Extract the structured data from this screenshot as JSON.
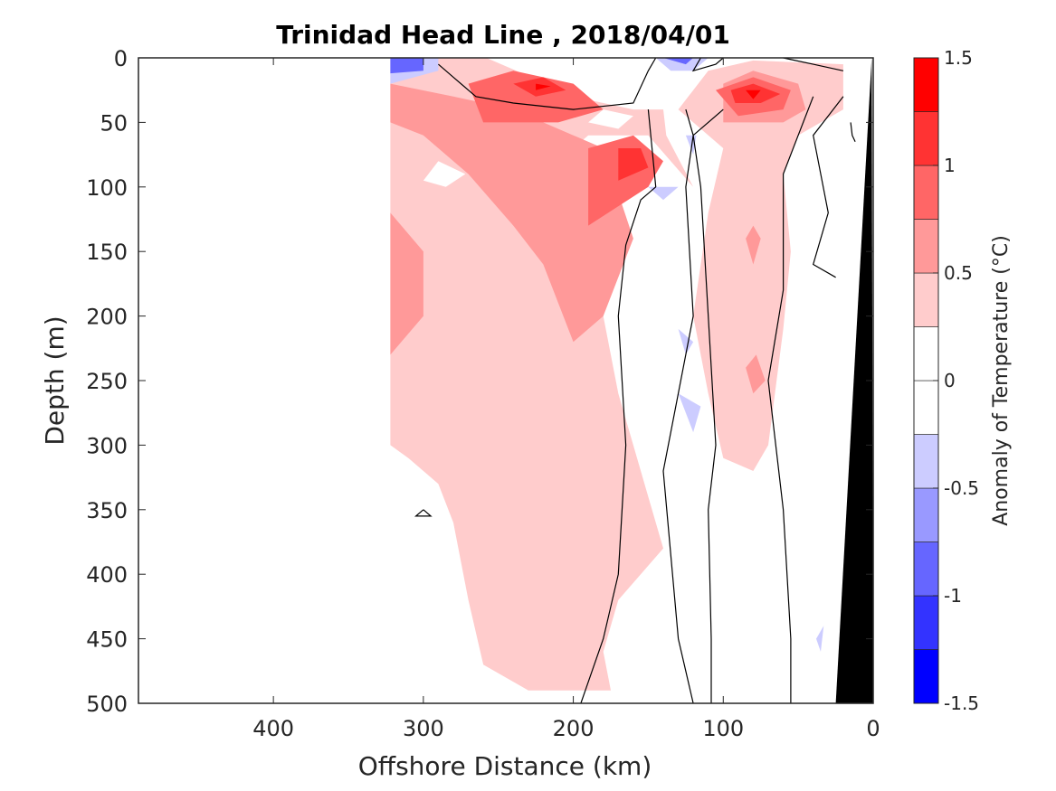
{
  "chart_data": {
    "type": "contour",
    "title": "Trinidad Head Line , 2018/04/01",
    "xlabel": "Offshore Distance (km)",
    "ylabel": "Depth (m)",
    "xlim": [
      490,
      0
    ],
    "ylim": [
      0,
      500
    ],
    "x_reversed": true,
    "y_reversed": true,
    "x_ticks": [
      400,
      300,
      200,
      100,
      0
    ],
    "y_ticks": [
      0,
      50,
      100,
      150,
      200,
      250,
      300,
      350,
      400,
      450,
      500
    ],
    "colorbar": {
      "label": "Anomaly of Temperature (°C)",
      "range": [
        -1.5,
        1.5
      ],
      "ticks": [
        -1.5,
        -1,
        -0.5,
        0,
        0.5,
        1,
        1.5
      ],
      "levels": [
        {
          "from": -1.5,
          "to": -1.25,
          "color": "#0000ff"
        },
        {
          "from": -1.25,
          "to": -1.0,
          "color": "#3333ff"
        },
        {
          "from": -1.0,
          "to": -0.75,
          "color": "#6666ff"
        },
        {
          "from": -0.75,
          "to": -0.5,
          "color": "#9999ff"
        },
        {
          "from": -0.5,
          "to": -0.25,
          "color": "#ccccff"
        },
        {
          "from": -0.25,
          "to": 0.0,
          "color": "#ffffff"
        },
        {
          "from": 0.0,
          "to": 0.25,
          "color": "#ffffff"
        },
        {
          "from": 0.25,
          "to": 0.5,
          "color": "#ffcccc"
        },
        {
          "from": 0.5,
          "to": 0.75,
          "color": "#ff9999"
        },
        {
          "from": 0.75,
          "to": 1.0,
          "color": "#ff6666"
        },
        {
          "from": 1.0,
          "to": 1.25,
          "color": "#ff3333"
        },
        {
          "from": 1.25,
          "to": 1.5,
          "color": "#ff0000"
        }
      ]
    },
    "data_extent_km": [
      322,
      0
    ],
    "bathymetry_color": "#000000",
    "contour_line_color": "#000000",
    "regions": [
      {
        "level": 0.375,
        "points": [
          [
            322,
            0
          ],
          [
            258,
            0
          ],
          [
            230,
            14
          ],
          [
            200,
            30
          ],
          [
            160,
            40
          ],
          [
            140,
            40
          ],
          [
            138,
            60
          ],
          [
            120,
            100
          ],
          [
            150,
            60
          ],
          [
            190,
            60
          ],
          [
            200,
            70
          ],
          [
            200,
            90
          ],
          [
            210,
            100
          ],
          [
            200,
            150
          ],
          [
            180,
            200
          ],
          [
            170,
            260
          ],
          [
            150,
            340
          ],
          [
            140,
            380
          ],
          [
            170,
            420
          ],
          [
            180,
            460
          ],
          [
            175,
            490
          ],
          [
            230,
            490
          ],
          [
            260,
            470
          ],
          [
            270,
            420
          ],
          [
            280,
            360
          ],
          [
            290,
            330
          ],
          [
            310,
            310
          ],
          [
            322,
            300
          ]
        ]
      },
      {
        "level": 0.375,
        "points": [
          [
            130,
            40
          ],
          [
            110,
            10
          ],
          [
            80,
            2
          ],
          [
            20,
            5
          ],
          [
            20,
            40
          ],
          [
            50,
            60
          ],
          [
            60,
            90
          ],
          [
            55,
            150
          ],
          [
            60,
            210
          ],
          [
            70,
            300
          ],
          [
            80,
            320
          ],
          [
            100,
            310
          ],
          [
            110,
            260
          ],
          [
            120,
            200
          ],
          [
            110,
            120
          ],
          [
            100,
            70
          ]
        ]
      },
      {
        "level": 0.625,
        "points": [
          [
            322,
            20
          ],
          [
            280,
            30
          ],
          [
            240,
            40
          ],
          [
            200,
            60
          ],
          [
            180,
            70
          ],
          [
            160,
            140
          ],
          [
            180,
            200
          ],
          [
            200,
            220
          ],
          [
            220,
            160
          ],
          [
            240,
            130
          ],
          [
            270,
            90
          ],
          [
            300,
            60
          ],
          [
            322,
            50
          ]
        ]
      },
      {
        "level": 0.625,
        "points": [
          [
            322,
            120
          ],
          [
            300,
            150
          ],
          [
            300,
            200
          ],
          [
            322,
            230
          ]
        ]
      },
      {
        "level": 0.625,
        "points": [
          [
            100,
            20
          ],
          [
            80,
            10
          ],
          [
            50,
            20
          ],
          [
            45,
            40
          ],
          [
            60,
            50
          ],
          [
            100,
            50
          ]
        ]
      },
      {
        "level": 0.625,
        "points": [
          [
            85,
            140
          ],
          [
            80,
            160
          ],
          [
            75,
            140
          ],
          [
            80,
            130
          ]
        ]
      },
      {
        "level": 0.625,
        "points": [
          [
            85,
            240
          ],
          [
            80,
            260
          ],
          [
            72,
            250
          ],
          [
            78,
            230
          ]
        ]
      },
      {
        "level": 0.875,
        "points": [
          [
            270,
            20
          ],
          [
            240,
            10
          ],
          [
            200,
            20
          ],
          [
            180,
            40
          ],
          [
            210,
            50
          ],
          [
            260,
            50
          ]
        ]
      },
      {
        "level": 0.875,
        "points": [
          [
            190,
            70
          ],
          [
            160,
            60
          ],
          [
            140,
            80
          ],
          [
            150,
            100
          ],
          [
            190,
            130
          ]
        ]
      },
      {
        "level": 0.875,
        "points": [
          [
            105,
            25
          ],
          [
            80,
            15
          ],
          [
            55,
            25
          ],
          [
            60,
            40
          ],
          [
            90,
            45
          ]
        ]
      },
      {
        "level": 1.125,
        "points": [
          [
            240,
            20
          ],
          [
            220,
            15
          ],
          [
            205,
            25
          ],
          [
            225,
            30
          ]
        ]
      },
      {
        "level": 1.125,
        "points": [
          [
            170,
            70
          ],
          [
            155,
            70
          ],
          [
            150,
            85
          ],
          [
            170,
            95
          ]
        ]
      },
      {
        "level": 1.125,
        "points": [
          [
            95,
            25
          ],
          [
            80,
            20
          ],
          [
            62,
            28
          ],
          [
            75,
            35
          ],
          [
            92,
            35
          ]
        ]
      },
      {
        "level": 1.375,
        "points": [
          [
            225,
            20
          ],
          [
            215,
            22
          ],
          [
            225,
            25
          ]
        ]
      },
      {
        "level": 1.375,
        "points": [
          [
            85,
            25
          ],
          [
            75,
            25
          ],
          [
            80,
            32
          ]
        ]
      },
      {
        "level": 0.125,
        "points": [
          [
            290,
            80
          ],
          [
            272,
            90
          ],
          [
            285,
            100
          ],
          [
            300,
            95
          ]
        ]
      },
      {
        "level": 0.125,
        "points": [
          [
            180,
            40
          ],
          [
            160,
            45
          ],
          [
            170,
            55
          ],
          [
            190,
            50
          ]
        ]
      },
      {
        "level": -0.375,
        "points": [
          [
            322,
            0
          ],
          [
            290,
            0
          ],
          [
            290,
            10
          ],
          [
            322,
            20
          ]
        ]
      },
      {
        "level": -0.375,
        "points": [
          [
            145,
            0
          ],
          [
            110,
            0
          ],
          [
            120,
            10
          ],
          [
            135,
            10
          ]
        ]
      },
      {
        "level": -0.375,
        "points": [
          [
            125,
            60
          ],
          [
            120,
            75
          ],
          [
            118,
            60
          ]
        ]
      },
      {
        "level": -0.375,
        "points": [
          [
            150,
            100
          ],
          [
            140,
            110
          ],
          [
            130,
            100
          ]
        ]
      },
      {
        "level": -0.375,
        "points": [
          [
            130,
            210
          ],
          [
            125,
            230
          ],
          [
            120,
            220
          ]
        ]
      },
      {
        "level": -0.375,
        "points": [
          [
            130,
            260
          ],
          [
            120,
            290
          ],
          [
            115,
            270
          ]
        ]
      },
      {
        "level": -0.375,
        "points": [
          [
            38,
            450
          ],
          [
            35,
            460
          ],
          [
            33,
            440
          ]
        ]
      },
      {
        "level": -0.875,
        "points": [
          [
            322,
            0
          ],
          [
            300,
            0
          ],
          [
            300,
            10
          ],
          [
            322,
            12
          ]
        ]
      },
      {
        "level": -0.875,
        "points": [
          [
            140,
            0
          ],
          [
            120,
            0
          ],
          [
            125,
            5
          ]
        ]
      }
    ],
    "contour_lines": [
      {
        "level": 0,
        "points": [
          [
            290,
            5
          ],
          [
            280,
            15
          ],
          [
            265,
            30
          ],
          [
            240,
            35
          ],
          [
            200,
            40
          ],
          [
            160,
            35
          ],
          [
            150,
            10
          ],
          [
            145,
            0
          ]
        ]
      },
      {
        "level": 0,
        "points": [
          [
            115,
            0
          ],
          [
            120,
            10
          ],
          [
            105,
            5
          ],
          [
            100,
            0
          ]
        ]
      },
      {
        "level": 0,
        "points": [
          [
            60,
            0
          ],
          [
            40,
            5
          ],
          [
            20,
            10
          ]
        ]
      },
      {
        "level": 0,
        "points": [
          [
            150,
            40
          ],
          [
            145,
            100
          ],
          [
            155,
            110
          ],
          [
            165,
            145
          ],
          [
            170,
            200
          ],
          [
            165,
            300
          ],
          [
            170,
            400
          ],
          [
            180,
            450
          ],
          [
            195,
            500
          ]
        ]
      },
      {
        "level": 0,
        "points": [
          [
            125,
            40
          ],
          [
            120,
            60
          ],
          [
            125,
            100
          ],
          [
            120,
            200
          ],
          [
            135,
            290
          ],
          [
            140,
            320
          ],
          [
            130,
            450
          ],
          [
            120,
            500
          ]
        ]
      },
      {
        "level": 0,
        "points": [
          [
            100,
            40
          ],
          [
            120,
            60
          ],
          [
            115,
            100
          ],
          [
            110,
            200
          ],
          [
            105,
            300
          ],
          [
            110,
            350
          ],
          [
            108,
            450
          ],
          [
            108,
            500
          ]
        ]
      },
      {
        "level": 0,
        "points": [
          [
            40,
            30
          ],
          [
            50,
            60
          ],
          [
            60,
            90
          ],
          [
            60,
            180
          ],
          [
            70,
            250
          ],
          [
            65,
            300
          ],
          [
            60,
            350
          ],
          [
            55,
            450
          ],
          [
            55,
            500
          ]
        ]
      },
      {
        "level": 0,
        "points": [
          [
            20,
            30
          ],
          [
            40,
            60
          ],
          [
            30,
            120
          ],
          [
            40,
            160
          ],
          [
            25,
            170
          ]
        ]
      },
      {
        "level": 0,
        "points": [
          [
            15,
            50
          ],
          [
            14,
            60
          ],
          [
            12,
            65
          ]
        ]
      },
      {
        "level": 0,
        "points": [
          [
            300,
            350
          ],
          [
            305,
            355
          ],
          [
            295,
            355
          ],
          [
            300,
            350
          ]
        ]
      }
    ],
    "bathymetry": [
      [
        1,
        0
      ],
      [
        25,
        500
      ],
      [
        0,
        500
      ]
    ]
  }
}
